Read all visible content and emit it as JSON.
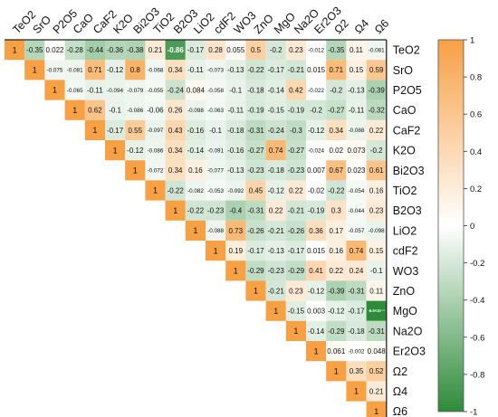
{
  "chart_data": {
    "type": "heatmap",
    "variables": [
      "TeO2",
      "SrO",
      "P2O5",
      "CaO",
      "CaF2",
      "K2O",
      "Bi2O3",
      "TiO2",
      "B2O3",
      "LiO2",
      "cdF2",
      "WO3",
      "ZnO",
      "MgO",
      "Na2O",
      "Er2O3",
      "Ω2",
      "Ω4",
      "Ω6"
    ],
    "matrix": [
      [
        1,
        -0.35,
        0.022,
        -0.28,
        -0.44,
        -0.36,
        -0.38,
        0.21,
        -0.86,
        -0.17,
        0.28,
        0.055,
        0.5,
        -0.2,
        0.23,
        -0.012,
        -0.35,
        0.11,
        -0.081
      ],
      [
        null,
        1,
        -0.075,
        -0.081,
        0.71,
        -0.12,
        0.8,
        -0.068,
        0.34,
        -0.11,
        -0.073,
        -0.13,
        -0.22,
        -0.17,
        -0.21,
        0.015,
        0.71,
        0.15,
        0.59
      ],
      [
        null,
        null,
        1,
        -0.065,
        -0.11,
        -0.094,
        -0.079,
        -0.055,
        -0.24,
        0.084,
        -0.058,
        -0.1,
        -0.18,
        -0.14,
        0.42,
        -0.022,
        -0.2,
        -0.13,
        -0.39
      ],
      [
        null,
        null,
        null,
        1,
        0.62,
        -0.1,
        -0.086,
        -0.06,
        0.26,
        -0.098,
        -0.063,
        -0.11,
        -0.19,
        -0.15,
        -0.19,
        -0.2,
        -0.27,
        -0.11,
        -0.32
      ],
      [
        null,
        null,
        null,
        null,
        1,
        -0.17,
        0.55,
        -0.097,
        0.43,
        -0.16,
        -0.1,
        -0.18,
        -0.31,
        -0.24,
        -0.3,
        -0.12,
        0.34,
        -0.088,
        0.22
      ],
      [
        null,
        null,
        null,
        null,
        null,
        1,
        -0.12,
        -0.086,
        0.34,
        -0.14,
        -0.091,
        -0.16,
        -0.27,
        0.74,
        -0.27,
        -0.024,
        0.02,
        0.073,
        -0.2
      ],
      [
        null,
        null,
        null,
        null,
        null,
        null,
        1,
        -0.072,
        0.34,
        0.16,
        -0.077,
        -0.13,
        -0.23,
        -0.18,
        -0.23,
        0.007,
        0.67,
        0.023,
        0.61
      ],
      [
        null,
        null,
        null,
        null,
        null,
        null,
        null,
        1,
        -0.22,
        -0.082,
        -0.053,
        -0.092,
        0.45,
        -0.12,
        0.22,
        -0.02,
        -0.22,
        -0.054,
        0.16
      ],
      [
        null,
        null,
        null,
        null,
        null,
        null,
        null,
        null,
        1,
        -0.22,
        -0.23,
        -0.4,
        -0.31,
        0.22,
        -0.21,
        -0.19,
        0.3,
        -0.044,
        0.23
      ],
      [
        null,
        null,
        null,
        null,
        null,
        null,
        null,
        null,
        null,
        1,
        -0.088,
        0.73,
        -0.26,
        -0.21,
        -0.26,
        0.36,
        0.17,
        -0.057,
        -0.098
      ],
      [
        null,
        null,
        null,
        null,
        null,
        null,
        null,
        null,
        null,
        null,
        1,
        0.19,
        -0.17,
        -0.13,
        -0.17,
        0.015,
        0.16,
        0.74,
        0.15
      ],
      [
        null,
        null,
        null,
        null,
        null,
        null,
        null,
        null,
        null,
        null,
        null,
        1,
        -0.29,
        -0.23,
        -0.29,
        0.41,
        0.22,
        0.24,
        -0.1
      ],
      [
        null,
        null,
        null,
        null,
        null,
        null,
        null,
        null,
        null,
        null,
        null,
        null,
        1,
        -0.21,
        0.23,
        -0.12,
        -0.39,
        -0.31,
        0.11
      ],
      [
        null,
        null,
        null,
        null,
        null,
        null,
        null,
        null,
        null,
        null,
        null,
        null,
        null,
        1,
        -0.15,
        0.003,
        -0.12,
        -0.17,
        "-6.5×10⁻⁵"
      ],
      [
        null,
        null,
        null,
        null,
        null,
        null,
        null,
        null,
        null,
        null,
        null,
        null,
        null,
        null,
        1,
        -0.14,
        -0.29,
        -0.18,
        -0.31
      ],
      [
        null,
        null,
        null,
        null,
        null,
        null,
        null,
        null,
        null,
        null,
        null,
        null,
        null,
        null,
        null,
        1,
        0.061,
        -0.002,
        0.048
      ],
      [
        null,
        null,
        null,
        null,
        null,
        null,
        null,
        null,
        null,
        null,
        null,
        null,
        null,
        null,
        null,
        null,
        1,
        0.35,
        0.52
      ],
      [
        null,
        null,
        null,
        null,
        null,
        null,
        null,
        null,
        null,
        null,
        null,
        null,
        null,
        null,
        null,
        null,
        null,
        1,
        0.21
      ],
      [
        null,
        null,
        null,
        null,
        null,
        null,
        null,
        null,
        null,
        null,
        null,
        null,
        null,
        null,
        null,
        null,
        null,
        null,
        1
      ]
    ],
    "colorbar": {
      "range": [
        -1,
        1
      ],
      "ticks": [
        "1",
        "0.8",
        "0.6",
        "0.4",
        "0.2",
        "0",
        "-0.2",
        "-0.4",
        "-0.6",
        "-0.8",
        "-1"
      ]
    },
    "colors": {
      "positive": "#f7a044",
      "neutral": "#ffffff",
      "negative": "#2e8b3a"
    },
    "legend_position": "right",
    "layout": "upper-triangle, column labels top (rotated), row labels right"
  }
}
